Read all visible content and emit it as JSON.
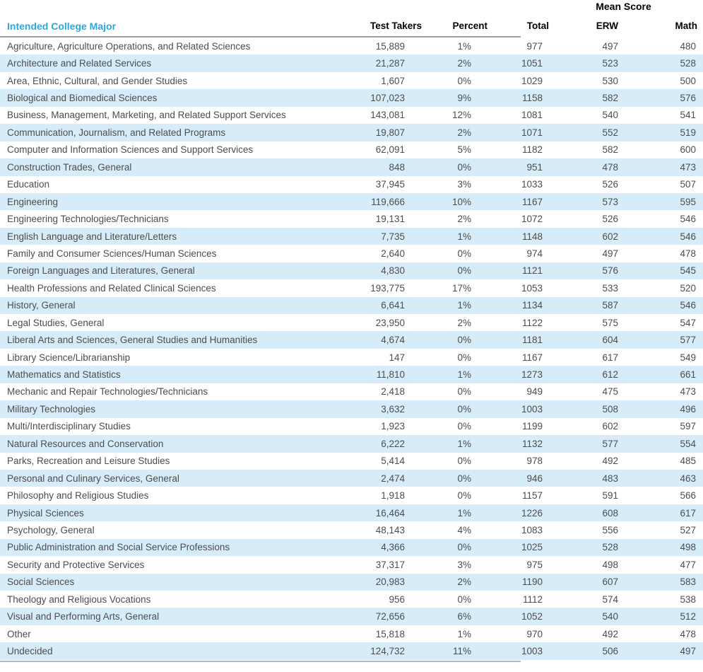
{
  "header": {
    "mean_score_label": "Mean Score",
    "columns": {
      "major": "Intended College Major",
      "test_takers": "Test Takers",
      "percent": "Percent",
      "total": "Total",
      "erw": "ERW",
      "math": "Math"
    }
  },
  "colors": {
    "accent_blue": "#29A8E0",
    "stripe_blue": "#D6EDF9",
    "rule_gray_top": "#9AA0A6",
    "rule_gray_bottom": "#B4B9BD",
    "text_dark": "#4D4D4D"
  },
  "table": {
    "rows": [
      {
        "major": "Agriculture, Agriculture Operations, and Related Sciences",
        "test_takers": "15,889",
        "percent": "1%",
        "total": "977",
        "erw": "497",
        "math": "480"
      },
      {
        "major": "Architecture and Related Services",
        "test_takers": "21,287",
        "percent": "2%",
        "total": "1051",
        "erw": "523",
        "math": "528"
      },
      {
        "major": "Area, Ethnic, Cultural, and Gender Studies",
        "test_takers": "1,607",
        "percent": "0%",
        "total": "1029",
        "erw": "530",
        "math": "500"
      },
      {
        "major": "Biological and Biomedical Sciences",
        "test_takers": "107,023",
        "percent": "9%",
        "total": "1158",
        "erw": "582",
        "math": "576"
      },
      {
        "major": "Business, Management, Marketing, and Related Support Services",
        "test_takers": "143,081",
        "percent": "12%",
        "total": "1081",
        "erw": "540",
        "math": "541"
      },
      {
        "major": "Communication, Journalism, and Related Programs",
        "test_takers": "19,807",
        "percent": "2%",
        "total": "1071",
        "erw": "552",
        "math": "519"
      },
      {
        "major": "Computer and Information Sciences and Support Services",
        "test_takers": "62,091",
        "percent": "5%",
        "total": "1182",
        "erw": "582",
        "math": "600"
      },
      {
        "major": "Construction Trades, General",
        "test_takers": "848",
        "percent": "0%",
        "total": "951",
        "erw": "478",
        "math": "473"
      },
      {
        "major": "Education",
        "test_takers": "37,945",
        "percent": "3%",
        "total": "1033",
        "erw": "526",
        "math": "507"
      },
      {
        "major": "Engineering",
        "test_takers": "119,666",
        "percent": "10%",
        "total": "1167",
        "erw": "573",
        "math": "595"
      },
      {
        "major": "Engineering Technologies/Technicians",
        "test_takers": "19,131",
        "percent": "2%",
        "total": "1072",
        "erw": "526",
        "math": "546"
      },
      {
        "major": "English Language and Literature/Letters",
        "test_takers": "7,735",
        "percent": "1%",
        "total": "1148",
        "erw": "602",
        "math": "546"
      },
      {
        "major": "Family and Consumer Sciences/Human Sciences",
        "test_takers": "2,640",
        "percent": "0%",
        "total": "974",
        "erw": "497",
        "math": "478"
      },
      {
        "major": "Foreign Languages and Literatures, General",
        "test_takers": "4,830",
        "percent": "0%",
        "total": "1121",
        "erw": "576",
        "math": "545"
      },
      {
        "major": "Health Professions and Related Clinical Sciences",
        "test_takers": "193,775",
        "percent": "17%",
        "total": "1053",
        "erw": "533",
        "math": "520"
      },
      {
        "major": "History, General",
        "test_takers": "6,641",
        "percent": "1%",
        "total": "1134",
        "erw": "587",
        "math": "546"
      },
      {
        "major": "Legal Studies, General",
        "test_takers": "23,950",
        "percent": "2%",
        "total": "1122",
        "erw": "575",
        "math": "547"
      },
      {
        "major": "Liberal Arts and Sciences, General Studies and Humanities",
        "test_takers": "4,674",
        "percent": "0%",
        "total": "1181",
        "erw": "604",
        "math": "577"
      },
      {
        "major": "Library Science/Librarianship",
        "test_takers": "147",
        "percent": "0%",
        "total": "1167",
        "erw": "617",
        "math": "549"
      },
      {
        "major": "Mathematics and Statistics",
        "test_takers": "11,810",
        "percent": "1%",
        "total": "1273",
        "erw": "612",
        "math": "661"
      },
      {
        "major": "Mechanic and Repair Technologies/Technicians",
        "test_takers": "2,418",
        "percent": "0%",
        "total": "949",
        "erw": "475",
        "math": "473"
      },
      {
        "major": "Military Technologies",
        "test_takers": "3,632",
        "percent": "0%",
        "total": "1003",
        "erw": "508",
        "math": "496"
      },
      {
        "major": "Multi/Interdisciplinary Studies",
        "test_takers": "1,923",
        "percent": "0%",
        "total": "1199",
        "erw": "602",
        "math": "597"
      },
      {
        "major": "Natural Resources and Conservation",
        "test_takers": "6,222",
        "percent": "1%",
        "total": "1132",
        "erw": "577",
        "math": "554"
      },
      {
        "major": "Parks, Recreation and Leisure Studies",
        "test_takers": "5,414",
        "percent": "0%",
        "total": "978",
        "erw": "492",
        "math": "485"
      },
      {
        "major": "Personal and Culinary Services, General",
        "test_takers": "2,474",
        "percent": "0%",
        "total": "946",
        "erw": "483",
        "math": "463"
      },
      {
        "major": "Philosophy and Religious Studies",
        "test_takers": "1,918",
        "percent": "0%",
        "total": "1157",
        "erw": "591",
        "math": "566"
      },
      {
        "major": "Physical Sciences",
        "test_takers": "16,464",
        "percent": "1%",
        "total": "1226",
        "erw": "608",
        "math": "617"
      },
      {
        "major": "Psychology, General",
        "test_takers": "48,143",
        "percent": "4%",
        "total": "1083",
        "erw": "556",
        "math": "527"
      },
      {
        "major": "Public Administration and Social Service Professions",
        "test_takers": "4,366",
        "percent": "0%",
        "total": "1025",
        "erw": "528",
        "math": "498"
      },
      {
        "major": "Security and Protective Services",
        "test_takers": "37,317",
        "percent": "3%",
        "total": "975",
        "erw": "498",
        "math": "477"
      },
      {
        "major": "Social Sciences",
        "test_takers": "20,983",
        "percent": "2%",
        "total": "1190",
        "erw": "607",
        "math": "583"
      },
      {
        "major": "Theology and Religious Vocations",
        "test_takers": "956",
        "percent": "0%",
        "total": "1112",
        "erw": "574",
        "math": "538"
      },
      {
        "major": "Visual and Performing Arts, General",
        "test_takers": "72,656",
        "percent": "6%",
        "total": "1052",
        "erw": "540",
        "math": "512"
      },
      {
        "major": "Other",
        "test_takers": "15,818",
        "percent": "1%",
        "total": "970",
        "erw": "492",
        "math": "478"
      },
      {
        "major": "Undecided",
        "test_takers": "124,732",
        "percent": "11%",
        "total": "1003",
        "erw": "506",
        "math": "497"
      }
    ]
  }
}
